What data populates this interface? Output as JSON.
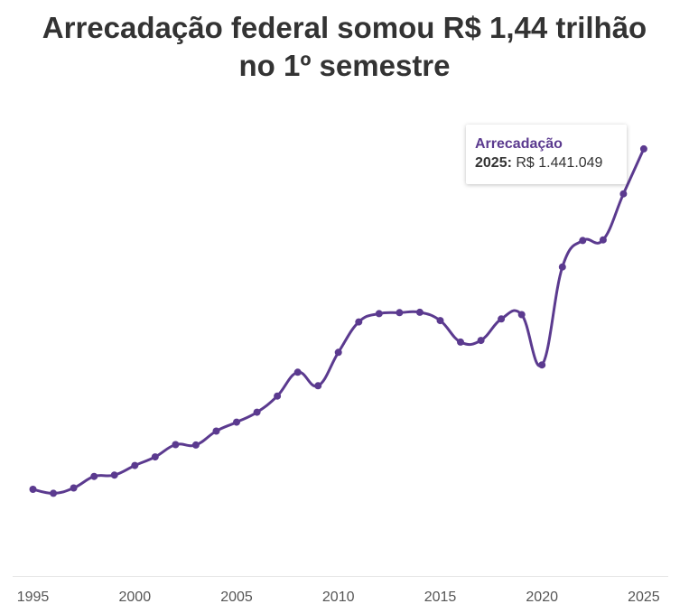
{
  "title_line1": "Arrecadação federal somou R$ 1,44 trilhão",
  "title_line2": "no 1º semestre",
  "colors": {
    "series": "#5b3a8f",
    "title": "#333333",
    "axis_line": "#e6e6e6",
    "tick_label": "#555555"
  },
  "tooltip": {
    "series_name": "Arrecadação",
    "year": "2025:",
    "value": "R$ 1.441.049"
  },
  "chart_data": {
    "type": "line",
    "x": [
      1995,
      1996,
      1997,
      1998,
      1999,
      2000,
      2001,
      2002,
      2003,
      2004,
      2005,
      2006,
      2007,
      2008,
      2009,
      2010,
      2011,
      2012,
      2013,
      2014,
      2015,
      2016,
      2017,
      2018,
      2019,
      2020,
      2021,
      2022,
      2023,
      2024,
      2025
    ],
    "series": [
      {
        "name": "Arrecadação",
        "values": [
          412000,
          400000,
          416000,
          451000,
          455000,
          484000,
          510000,
          547000,
          546000,
          588000,
          615000,
          645000,
          694000,
          766000,
          725000,
          826000,
          918000,
          943000,
          946000,
          947000,
          922000,
          857000,
          862000,
          927000,
          940000,
          788000,
          1084000,
          1164000,
          1166000,
          1305000,
          1441049
        ]
      }
    ],
    "x_ticks": [
      "1995",
      "2000",
      "2005",
      "2010",
      "2015",
      "2020",
      "2025"
    ],
    "xlim": [
      1994,
      2026.2
    ],
    "ylim": [
      150000,
      1700000
    ],
    "grid": false,
    "legend": "none"
  }
}
